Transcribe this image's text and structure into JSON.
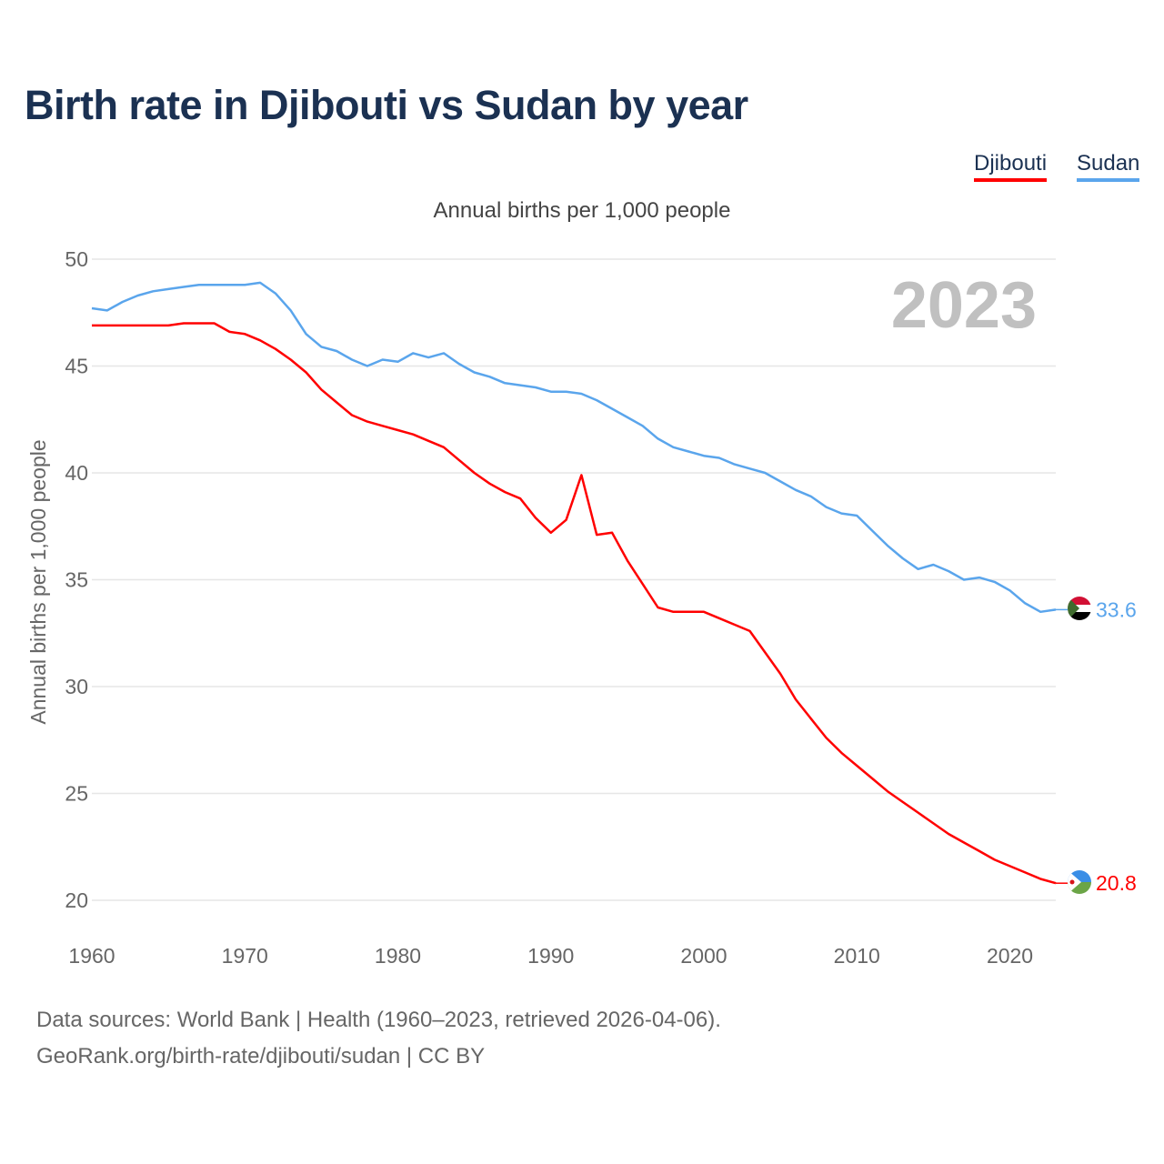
{
  "title": "Birth rate in Djibouti vs Sudan by year",
  "legend": [
    "Djibouti",
    "Sudan"
  ],
  "footer": {
    "line1": "Data sources: World Bank | Health (1960–2023, retrieved 2026-04-06).",
    "line2": "GeoRank.org/birth-rate/djibouti/sudan | CC BY"
  },
  "chart_data": {
    "type": "line",
    "title": "Birth rate in Djibouti vs Sudan by year",
    "subtitle": "Annual births per 1,000 people",
    "xlabel": "",
    "ylabel": "Annual births per 1,000 people",
    "year_watermark": "2023",
    "xlim": [
      1960,
      2023
    ],
    "ylim": [
      20,
      50
    ],
    "xticks": [
      1960,
      1970,
      1980,
      1990,
      2000,
      2010,
      2020
    ],
    "yticks": [
      20,
      25,
      30,
      35,
      40,
      45,
      50
    ],
    "grid": true,
    "legend_position": "top-right",
    "x": [
      1960,
      1961,
      1962,
      1963,
      1964,
      1965,
      1966,
      1967,
      1968,
      1969,
      1970,
      1971,
      1972,
      1973,
      1974,
      1975,
      1976,
      1977,
      1978,
      1979,
      1980,
      1981,
      1982,
      1983,
      1984,
      1985,
      1986,
      1987,
      1988,
      1989,
      1990,
      1991,
      1992,
      1993,
      1994,
      1995,
      1996,
      1997,
      1998,
      1999,
      2000,
      2001,
      2002,
      2003,
      2004,
      2005,
      2006,
      2007,
      2008,
      2009,
      2010,
      2011,
      2012,
      2013,
      2014,
      2015,
      2016,
      2017,
      2018,
      2019,
      2020,
      2021,
      2022,
      2023
    ],
    "series": [
      {
        "name": "Djibouti",
        "color": "#ff0000",
        "end_label": "20.8",
        "values": [
          46.9,
          46.9,
          46.9,
          46.9,
          46.9,
          46.9,
          47.0,
          47.0,
          47.0,
          46.6,
          46.5,
          46.2,
          45.8,
          45.3,
          44.7,
          43.9,
          43.3,
          42.7,
          42.4,
          42.2,
          42.0,
          41.8,
          41.5,
          41.2,
          40.6,
          40.0,
          39.5,
          39.1,
          38.8,
          37.9,
          37.2,
          37.8,
          39.9,
          37.1,
          37.2,
          35.9,
          34.8,
          33.7,
          33.5,
          33.5,
          33.5,
          33.2,
          32.9,
          32.6,
          31.6,
          30.6,
          29.4,
          28.5,
          27.6,
          26.9,
          26.3,
          25.7,
          25.1,
          24.6,
          24.1,
          23.6,
          23.1,
          22.7,
          22.3,
          21.9,
          21.6,
          21.3,
          21.0,
          20.8
        ]
      },
      {
        "name": "Sudan",
        "color": "#5aa5ec",
        "end_label": "33.6",
        "values": [
          47.7,
          47.6,
          48.0,
          48.3,
          48.5,
          48.6,
          48.7,
          48.8,
          48.8,
          48.8,
          48.8,
          48.9,
          48.4,
          47.6,
          46.5,
          45.9,
          45.7,
          45.3,
          45.0,
          45.3,
          45.2,
          45.6,
          45.4,
          45.6,
          45.1,
          44.7,
          44.5,
          44.2,
          44.1,
          44.0,
          43.8,
          43.8,
          43.7,
          43.4,
          43.0,
          42.6,
          42.2,
          41.6,
          41.2,
          41.0,
          40.8,
          40.7,
          40.4,
          40.2,
          40.0,
          39.6,
          39.2,
          38.9,
          38.4,
          38.1,
          38.0,
          37.3,
          36.6,
          36.0,
          35.5,
          35.7,
          35.4,
          35.0,
          35.1,
          34.9,
          34.5,
          33.9,
          33.5,
          33.6
        ]
      }
    ]
  }
}
